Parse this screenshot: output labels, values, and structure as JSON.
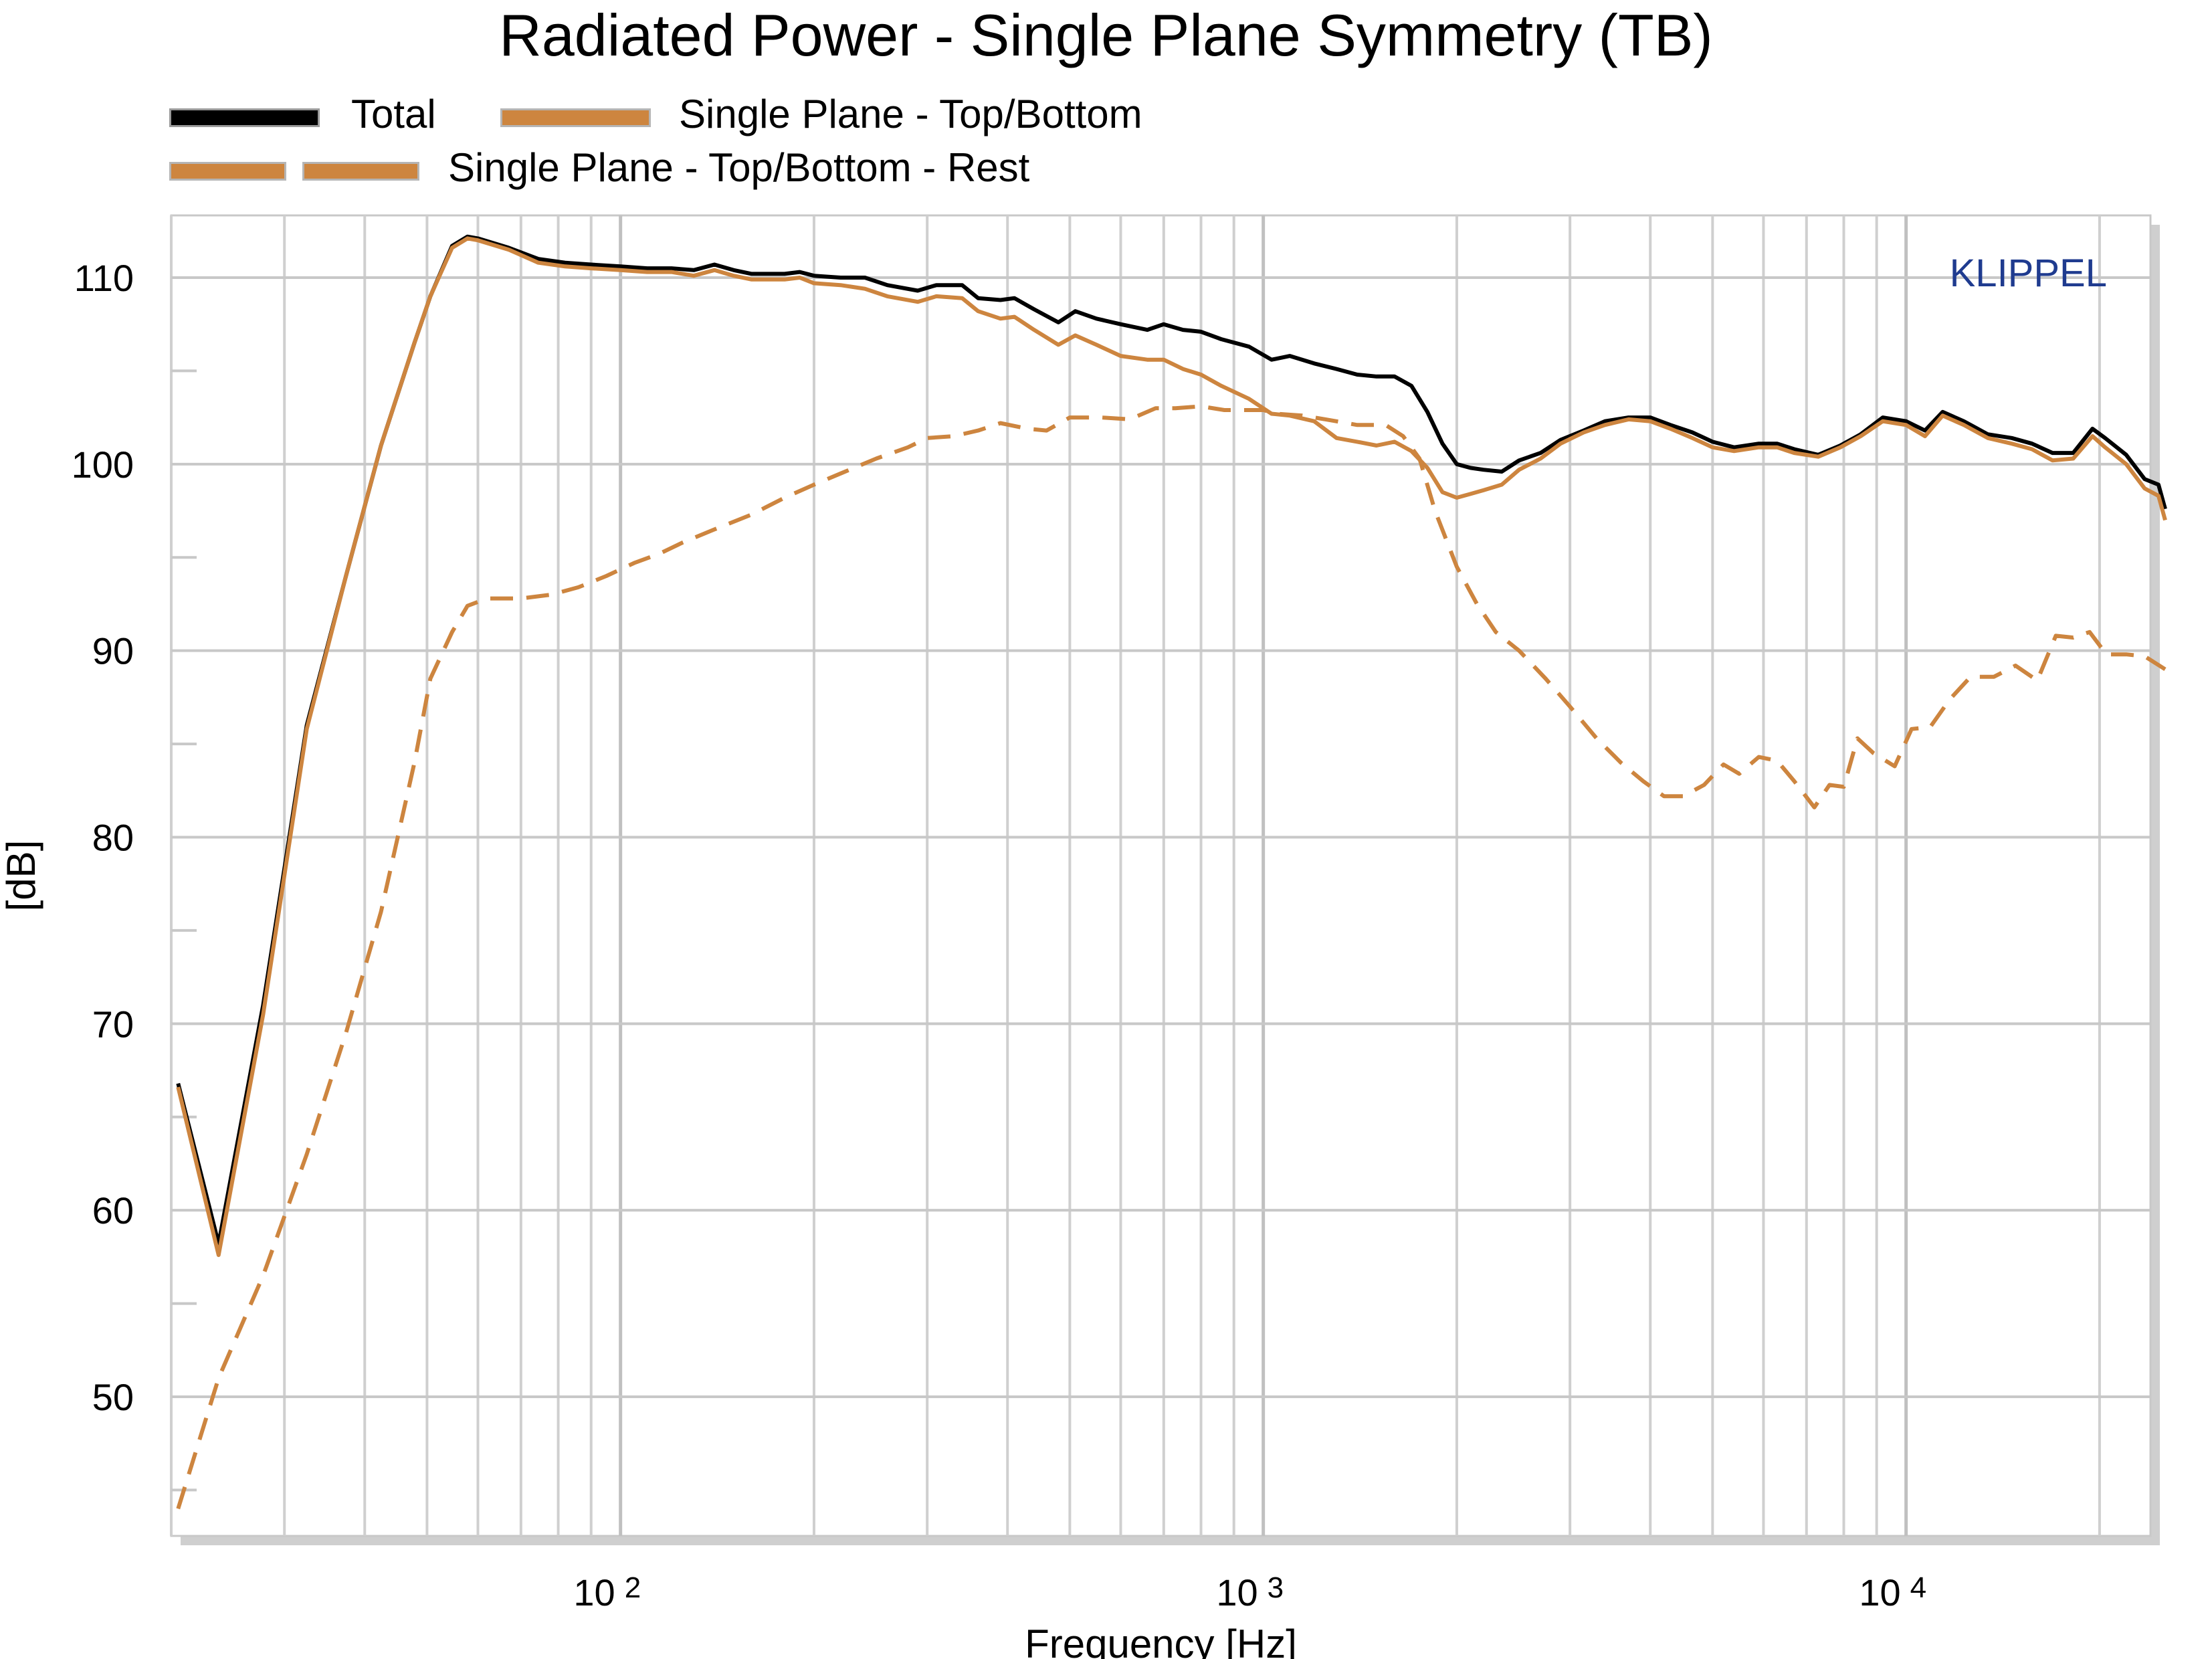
{
  "chart_data": {
    "type": "line",
    "title": "Radiated Power - Single Plane Symmetry (TB)",
    "xlabel": "Frequency [Hz]",
    "ylabel": "[dB]",
    "x_scale": "log",
    "xlim": [
      20,
      24000
    ],
    "ylim": [
      43,
      114
    ],
    "yticks": [
      50,
      60,
      70,
      80,
      90,
      100,
      110
    ],
    "ytick_labels": [
      "50",
      "60",
      "70",
      "80",
      "90",
      "100",
      "110"
    ],
    "xtick_labels": [
      {
        "value": 100,
        "base": "10",
        "exp": "2"
      },
      {
        "value": 1000,
        "base": "10",
        "exp": "3"
      },
      {
        "value": 10000,
        "base": "10",
        "exp": "4"
      }
    ],
    "grid": true,
    "watermark": "KLIPPEL",
    "legend": {
      "placement": "top-left",
      "entries": [
        {
          "label": "Total",
          "color": "#000000",
          "style": "solid"
        },
        {
          "label": "Single Plane - Top/Bottom",
          "color": "#CD853F",
          "style": "solid"
        },
        {
          "label": "Single Plane - Top/Bottom - Rest",
          "color": "#CD853F",
          "style": "dashed"
        }
      ]
    },
    "series": [
      {
        "name": "Total",
        "color": "#000000",
        "dash": false,
        "points": [
          [
            20.5,
            66.8
          ],
          [
            23.7,
            58.2
          ],
          [
            27.8,
            71
          ],
          [
            32.5,
            86
          ],
          [
            37.4,
            94
          ],
          [
            42.4,
            101
          ],
          [
            47.8,
            106.5
          ],
          [
            50.6,
            109
          ],
          [
            54.7,
            111.7
          ],
          [
            57.8,
            112.2
          ],
          [
            60,
            112.1
          ],
          [
            67,
            111.6
          ],
          [
            74.5,
            111
          ],
          [
            82,
            110.8
          ],
          [
            90,
            110.7
          ],
          [
            100,
            110.6
          ],
          [
            110,
            110.5
          ],
          [
            120,
            110.5
          ],
          [
            130,
            110.4
          ],
          [
            140,
            110.7
          ],
          [
            150,
            110.4
          ],
          [
            160,
            110.2
          ],
          [
            180,
            110.2
          ],
          [
            190,
            110.3
          ],
          [
            200,
            110.1
          ],
          [
            220,
            110
          ],
          [
            240,
            110
          ],
          [
            260,
            109.6
          ],
          [
            290,
            109.3
          ],
          [
            310,
            109.6
          ],
          [
            340,
            109.6
          ],
          [
            360,
            108.9
          ],
          [
            390,
            108.8
          ],
          [
            410,
            108.9
          ],
          [
            440,
            108.3
          ],
          [
            480,
            107.6
          ],
          [
            510,
            108.2
          ],
          [
            550,
            107.8
          ],
          [
            600,
            107.5
          ],
          [
            660,
            107.2
          ],
          [
            700,
            107.5
          ],
          [
            750,
            107.2
          ],
          [
            800,
            107.1
          ],
          [
            860,
            106.7
          ],
          [
            950,
            106.3
          ],
          [
            1030,
            105.6
          ],
          [
            1100,
            105.8
          ],
          [
            1200,
            105.4
          ],
          [
            1300,
            105.1
          ],
          [
            1400,
            104.8
          ],
          [
            1500,
            104.7
          ],
          [
            1600,
            104.7
          ],
          [
            1700,
            104.2
          ],
          [
            1800,
            102.8
          ],
          [
            1900,
            101.1
          ],
          [
            2000,
            100
          ],
          [
            2100,
            99.8
          ],
          [
            2200,
            99.7
          ],
          [
            2350,
            99.6
          ],
          [
            2500,
            100.2
          ],
          [
            2700,
            100.6
          ],
          [
            2900,
            101.3
          ],
          [
            3150,
            101.8
          ],
          [
            3400,
            102.3
          ],
          [
            3700,
            102.5
          ],
          [
            4000,
            102.5
          ],
          [
            4300,
            102.1
          ],
          [
            4650,
            101.7
          ],
          [
            5000,
            101.2
          ],
          [
            5400,
            100.9
          ],
          [
            5900,
            101.1
          ],
          [
            6300,
            101.1
          ],
          [
            6700,
            100.8
          ],
          [
            7300,
            100.5
          ],
          [
            7900,
            101
          ],
          [
            8500,
            101.6
          ],
          [
            9200,
            102.5
          ],
          [
            10000,
            102.3
          ],
          [
            10700,
            101.8
          ],
          [
            11400,
            102.8
          ],
          [
            12300,
            102.3
          ],
          [
            13400,
            101.6
          ],
          [
            14600,
            101.4
          ],
          [
            15700,
            101.1
          ],
          [
            16900,
            100.6
          ],
          [
            18200,
            100.6
          ],
          [
            19500,
            101.9
          ],
          [
            20400,
            101.4
          ],
          [
            22000,
            100.5
          ],
          [
            23500,
            99.2
          ],
          [
            24700,
            98.9
          ],
          [
            25300,
            97.6
          ]
        ]
      },
      {
        "name": "Single Plane - Top/Bottom",
        "color": "#CD853F",
        "dash": false,
        "points": [
          [
            20.5,
            66.6
          ],
          [
            23.7,
            57.6
          ],
          [
            27.8,
            70.5
          ],
          [
            32.5,
            85.8
          ],
          [
            37.4,
            94
          ],
          [
            42.4,
            101
          ],
          [
            47.8,
            106.5
          ],
          [
            50.6,
            109
          ],
          [
            54.7,
            111.6
          ],
          [
            57.8,
            112.1
          ],
          [
            60,
            112
          ],
          [
            67,
            111.5
          ],
          [
            74.5,
            110.8
          ],
          [
            82,
            110.6
          ],
          [
            90,
            110.5
          ],
          [
            100,
            110.4
          ],
          [
            110,
            110.3
          ],
          [
            120,
            110.3
          ],
          [
            130,
            110.1
          ],
          [
            140,
            110.4
          ],
          [
            150,
            110.1
          ],
          [
            160,
            109.9
          ],
          [
            180,
            109.9
          ],
          [
            190,
            110
          ],
          [
            200,
            109.7
          ],
          [
            220,
            109.6
          ],
          [
            240,
            109.4
          ],
          [
            260,
            109
          ],
          [
            290,
            108.7
          ],
          [
            310,
            109
          ],
          [
            340,
            108.9
          ],
          [
            360,
            108.2
          ],
          [
            390,
            107.8
          ],
          [
            410,
            107.9
          ],
          [
            440,
            107.2
          ],
          [
            480,
            106.4
          ],
          [
            510,
            106.9
          ],
          [
            550,
            106.4
          ],
          [
            600,
            105.8
          ],
          [
            660,
            105.6
          ],
          [
            700,
            105.6
          ],
          [
            750,
            105.1
          ],
          [
            800,
            104.8
          ],
          [
            860,
            104.2
          ],
          [
            950,
            103.5
          ],
          [
            1030,
            102.7
          ],
          [
            1100,
            102.6
          ],
          [
            1200,
            102.3
          ],
          [
            1300,
            101.4
          ],
          [
            1400,
            101.2
          ],
          [
            1500,
            101
          ],
          [
            1600,
            101.2
          ],
          [
            1700,
            100.7
          ],
          [
            1800,
            99.8
          ],
          [
            1900,
            98.5
          ],
          [
            2000,
            98.2
          ],
          [
            2100,
            98.4
          ],
          [
            2200,
            98.6
          ],
          [
            2350,
            98.9
          ],
          [
            2500,
            99.7
          ],
          [
            2700,
            100.3
          ],
          [
            2900,
            101.1
          ],
          [
            3150,
            101.7
          ],
          [
            3400,
            102.1
          ],
          [
            3700,
            102.4
          ],
          [
            4000,
            102.3
          ],
          [
            4300,
            101.9
          ],
          [
            4650,
            101.4
          ],
          [
            5000,
            100.9
          ],
          [
            5400,
            100.7
          ],
          [
            5900,
            100.9
          ],
          [
            6300,
            100.9
          ],
          [
            6700,
            100.6
          ],
          [
            7300,
            100.4
          ],
          [
            7900,
            100.9
          ],
          [
            8500,
            101.5
          ],
          [
            9200,
            102.3
          ],
          [
            10000,
            102.1
          ],
          [
            10700,
            101.5
          ],
          [
            11400,
            102.6
          ],
          [
            12300,
            102.1
          ],
          [
            13400,
            101.4
          ],
          [
            14600,
            101.1
          ],
          [
            15700,
            100.8
          ],
          [
            16900,
            100.2
          ],
          [
            18200,
            100.3
          ],
          [
            19500,
            101.5
          ],
          [
            20400,
            100.9
          ],
          [
            22000,
            100
          ],
          [
            23500,
            98.7
          ],
          [
            24700,
            98.3
          ],
          [
            25300,
            97
          ]
        ]
      },
      {
        "name": "Single Plane - Top/Bottom - Rest",
        "color": "#CD853F",
        "dash": true,
        "points": [
          [
            20.5,
            44
          ],
          [
            23.7,
            51
          ],
          [
            27.8,
            56.5
          ],
          [
            32.5,
            63
          ],
          [
            37.4,
            69.5
          ],
          [
            42.4,
            76
          ],
          [
            47.8,
            84
          ],
          [
            50.6,
            88.5
          ],
          [
            54.7,
            91
          ],
          [
            57.8,
            92.4
          ],
          [
            62,
            92.8
          ],
          [
            70,
            92.8
          ],
          [
            78,
            93
          ],
          [
            86,
            93.4
          ],
          [
            95,
            94
          ],
          [
            105,
            94.7
          ],
          [
            115,
            95.2
          ],
          [
            125,
            95.8
          ],
          [
            140,
            96.5
          ],
          [
            160,
            97.3
          ],
          [
            180,
            98.2
          ],
          [
            200,
            98.9
          ],
          [
            220,
            99.5
          ],
          [
            250,
            100.3
          ],
          [
            280,
            100.9
          ],
          [
            300,
            101.4
          ],
          [
            330,
            101.5
          ],
          [
            360,
            101.8
          ],
          [
            390,
            102.2
          ],
          [
            430,
            101.9
          ],
          [
            460,
            101.8
          ],
          [
            500,
            102.5
          ],
          [
            560,
            102.5
          ],
          [
            620,
            102.4
          ],
          [
            680,
            103
          ],
          [
            730,
            103
          ],
          [
            800,
            103.1
          ],
          [
            870,
            102.9
          ],
          [
            940,
            102.9
          ],
          [
            1000,
            102.9
          ],
          [
            1050,
            102.7
          ],
          [
            1150,
            102.6
          ],
          [
            1250,
            102.4
          ],
          [
            1400,
            102.1
          ],
          [
            1550,
            102.1
          ],
          [
            1650,
            101.5
          ],
          [
            1750,
            100.3
          ],
          [
            1850,
            97.5
          ],
          [
            2000,
            94.5
          ],
          [
            2150,
            92.5
          ],
          [
            2300,
            91
          ],
          [
            2500,
            90
          ],
          [
            2750,
            88.5
          ],
          [
            3000,
            87
          ],
          [
            3300,
            85.3
          ],
          [
            3600,
            84
          ],
          [
            3900,
            83
          ],
          [
            4200,
            82.2
          ],
          [
            4500,
            82.2
          ],
          [
            4850,
            82.8
          ],
          [
            5200,
            83.9
          ],
          [
            5500,
            83.4
          ],
          [
            5900,
            84.3
          ],
          [
            6300,
            84.1
          ],
          [
            6700,
            83
          ],
          [
            7200,
            81.6
          ],
          [
            7600,
            82.8
          ],
          [
            8000,
            82.7
          ],
          [
            8400,
            85.3
          ],
          [
            8900,
            84.5
          ],
          [
            9600,
            83.8
          ],
          [
            10200,
            85.8
          ],
          [
            10900,
            85.9
          ],
          [
            11700,
            87.4
          ],
          [
            12600,
            88.6
          ],
          [
            13700,
            88.6
          ],
          [
            14800,
            89.2
          ],
          [
            16000,
            88.4
          ],
          [
            17100,
            90.8
          ],
          [
            18200,
            90.7
          ],
          [
            19300,
            91
          ],
          [
            20500,
            89.8
          ],
          [
            22000,
            89.8
          ],
          [
            23500,
            89.7
          ],
          [
            25300,
            89
          ]
        ]
      }
    ]
  }
}
